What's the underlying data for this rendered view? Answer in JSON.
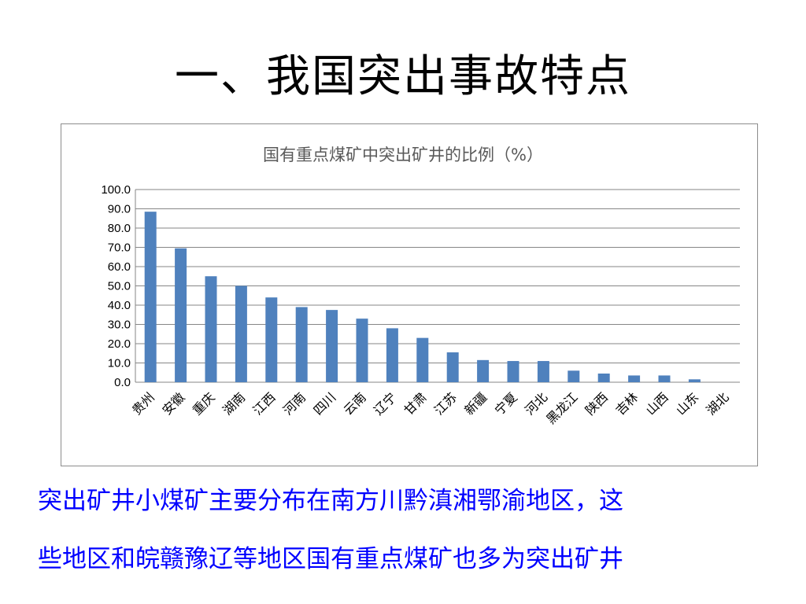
{
  "slide": {
    "title": "一、我国突出事故特点",
    "body_lines": [
      "突出矿井小煤矿主要分布在南方川黔滇湘鄂渝地区，这",
      "些地区和皖赣豫辽等地区国有重点煤矿也多为突出矿井"
    ]
  },
  "colors": {
    "bar": "#4f81bd",
    "grid": "#868686",
    "body_text": "#0000ff"
  },
  "chart_data": {
    "type": "bar",
    "title": "国有重点煤矿中突出矿井的比例（%）",
    "categories": [
      "贵州",
      "安徽",
      "重庆",
      "湖南",
      "江西",
      "河南",
      "四川",
      "云南",
      "辽宁",
      "甘肃",
      "江苏",
      "新疆",
      "宁夏",
      "河北",
      "黑龙江",
      "陕西",
      "吉林",
      "山西",
      "山东",
      "湖北"
    ],
    "values": [
      88.5,
      69.5,
      55.0,
      50.0,
      44.0,
      39.0,
      37.5,
      33.0,
      28.0,
      23.0,
      15.5,
      11.5,
      11.0,
      11.0,
      6.0,
      4.5,
      3.5,
      3.5,
      1.5,
      0.0
    ],
    "ylim": [
      0,
      100
    ],
    "yticks": [
      "0.0",
      "10.0",
      "20.0",
      "30.0",
      "40.0",
      "50.0",
      "60.0",
      "70.0",
      "80.0",
      "90.0",
      "100.0"
    ],
    "grid": true,
    "legend": "none"
  }
}
